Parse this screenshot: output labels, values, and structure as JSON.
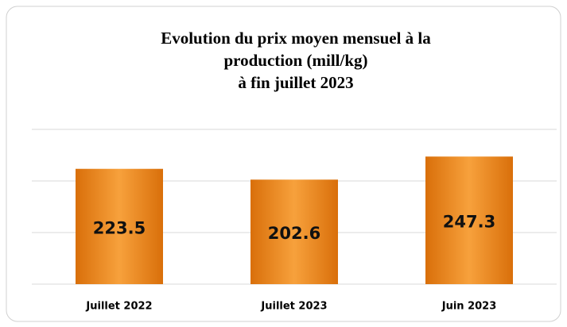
{
  "chart_data": {
    "type": "bar",
    "title": [
      "Evolution du prix moyen mensuel à la",
      "production (mill/kg)",
      "à fin juillet 2023"
    ],
    "categories": [
      "Juillet 2022",
      "Juillet 2023",
      "Juin 2023"
    ],
    "values": [
      223.5,
      202.6,
      247.3
    ],
    "color": "#f7a13c",
    "ylim": [
      0,
      300
    ],
    "yticks": [
      0,
      100,
      200,
      300
    ],
    "grid": true
  }
}
